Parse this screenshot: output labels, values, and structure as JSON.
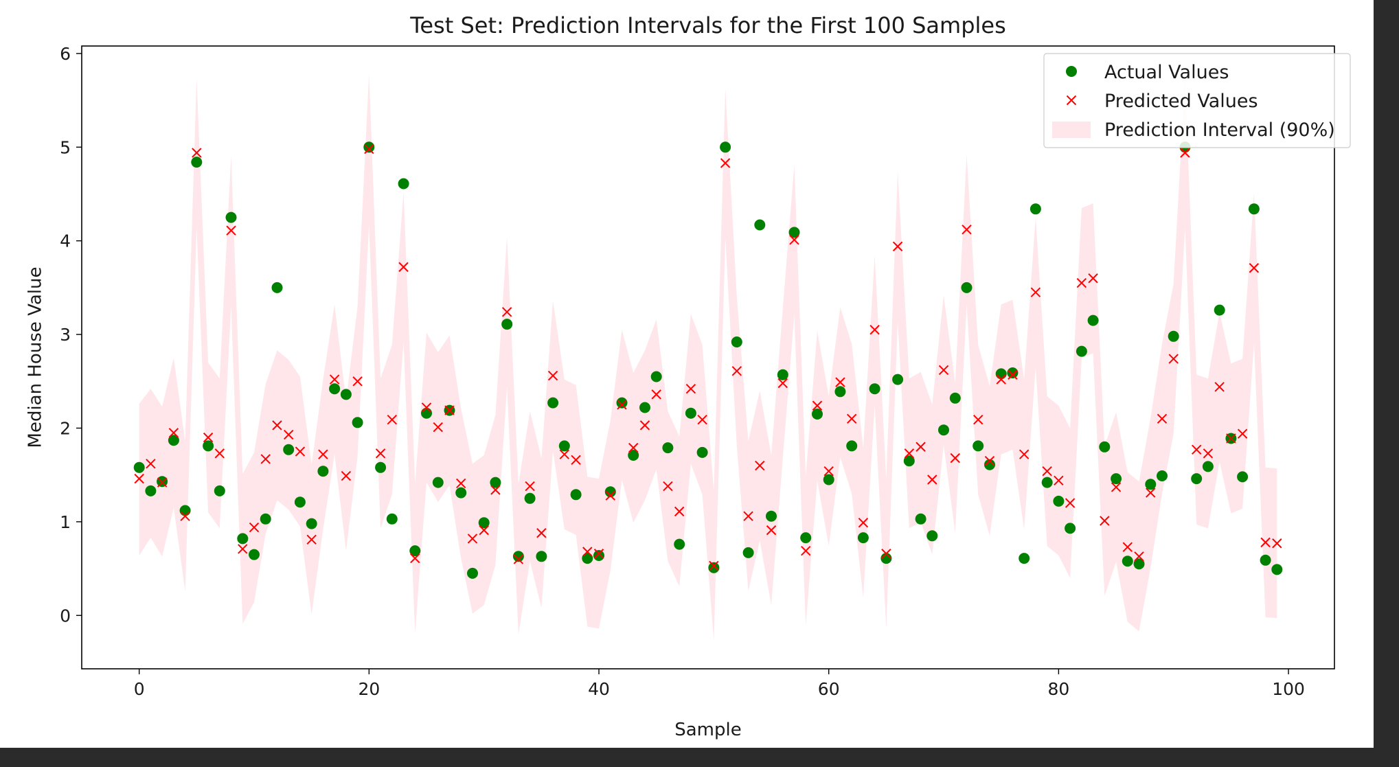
{
  "chart_data": {
    "type": "scatter",
    "title": "Test Set: Prediction Intervals for the First 100 Samples",
    "xlabel": "Sample",
    "ylabel": "Median House Value",
    "xlim": [
      -5,
      104
    ],
    "ylim": [
      -0.57,
      6.08
    ],
    "xticks": [
      0,
      20,
      40,
      60,
      80,
      100
    ],
    "yticks": [
      0,
      1,
      2,
      3,
      4,
      5,
      6
    ],
    "legend_position": "top-right",
    "grid": false,
    "colors": {
      "actual": "#008000",
      "predicted": "#ff0000",
      "interval": "#ffc0cb"
    },
    "series": [
      {
        "name": "Actual Values",
        "marker": "circle",
        "values": [
          1.58,
          1.33,
          1.43,
          1.87,
          1.12,
          4.84,
          1.81,
          1.33,
          4.25,
          0.82,
          0.65,
          1.03,
          3.5,
          1.77,
          1.21,
          0.98,
          1.54,
          2.42,
          2.36,
          2.06,
          5.0,
          1.58,
          1.03,
          4.61,
          0.69,
          2.16,
          1.42,
          2.19,
          1.31,
          0.45,
          0.99,
          1.42,
          3.11,
          0.63,
          1.25,
          0.63,
          2.27,
          1.81,
          1.29,
          0.61,
          0.64,
          1.32,
          2.27,
          1.71,
          2.22,
          2.55,
          1.79,
          0.76,
          2.16,
          1.74,
          0.51,
          5.0,
          2.92,
          0.67,
          4.17,
          1.06,
          2.57,
          4.09,
          0.83,
          2.15,
          1.45,
          2.39,
          1.81,
          0.83,
          2.42,
          0.61,
          2.52,
          1.65,
          1.03,
          0.85,
          1.98,
          2.32,
          3.5,
          1.81,
          1.61,
          2.58,
          2.59,
          0.61,
          4.34,
          1.42,
          1.22,
          0.93,
          2.82,
          3.15,
          1.8,
          1.46,
          0.58,
          0.55,
          1.4,
          1.49,
          2.98,
          5.0,
          1.46,
          1.59,
          3.26,
          1.89,
          1.48,
          4.34,
          0.59,
          0.49
        ]
      },
      {
        "name": "Predicted Values",
        "marker": "x",
        "values": [
          1.46,
          1.62,
          1.42,
          1.95,
          1.06,
          4.94,
          1.9,
          1.73,
          4.11,
          0.71,
          0.94,
          1.67,
          2.03,
          1.93,
          1.75,
          0.81,
          1.72,
          2.52,
          1.49,
          2.5,
          4.98,
          1.73,
          2.09,
          3.72,
          0.61,
          2.22,
          2.01,
          2.19,
          1.41,
          0.82,
          0.91,
          1.34,
          3.24,
          0.6,
          1.38,
          0.88,
          2.56,
          1.72,
          1.66,
          0.68,
          0.66,
          1.28,
          2.25,
          1.79,
          2.03,
          2.36,
          1.38,
          1.11,
          2.42,
          2.09,
          0.53,
          4.83,
          2.61,
          1.06,
          1.6,
          0.91,
          2.48,
          4.01,
          0.69,
          2.24,
          1.54,
          2.49,
          2.1,
          0.99,
          3.05,
          0.66,
          3.94,
          1.73,
          1.8,
          1.45,
          2.62,
          1.68,
          4.12,
          2.09,
          1.65,
          2.52,
          2.57,
          1.72,
          3.45,
          1.54,
          1.44,
          1.2,
          3.55,
          3.6,
          1.01,
          1.37,
          0.73,
          0.63,
          1.31,
          2.1,
          2.74,
          4.94,
          1.77,
          1.73,
          2.44,
          1.89,
          1.94,
          3.71,
          0.78,
          0.77
        ]
      },
      {
        "name": "Prediction Interval (90%)",
        "marker": "band",
        "lower": [
          0.64,
          0.83,
          0.63,
          1.15,
          0.26,
          4.14,
          1.1,
          0.93,
          3.31,
          -0.09,
          0.14,
          0.87,
          1.23,
          1.13,
          0.95,
          0.01,
          0.92,
          1.72,
          0.69,
          1.7,
          4.18,
          0.93,
          1.29,
          2.92,
          -0.19,
          1.42,
          1.21,
          1.39,
          0.61,
          0.02,
          0.11,
          0.54,
          2.44,
          -0.2,
          0.58,
          0.08,
          1.76,
          0.92,
          0.86,
          -0.12,
          -0.14,
          0.48,
          1.45,
          0.99,
          1.23,
          1.56,
          0.58,
          0.31,
          1.62,
          1.29,
          -0.27,
          4.03,
          1.81,
          0.26,
          0.8,
          0.11,
          1.68,
          3.21,
          -0.11,
          1.44,
          0.74,
          1.69,
          1.3,
          0.19,
          2.25,
          -0.14,
          3.14,
          0.93,
          1.0,
          0.65,
          1.82,
          0.88,
          3.32,
          1.29,
          0.85,
          1.72,
          1.77,
          0.92,
          2.65,
          0.74,
          0.64,
          0.4,
          2.75,
          2.8,
          0.21,
          0.57,
          -0.07,
          -0.17,
          0.51,
          1.3,
          1.94,
          4.14,
          0.97,
          0.93,
          1.64,
          1.09,
          1.14,
          2.91,
          -0.02,
          -0.03
        ],
        "upper": [
          2.26,
          2.42,
          2.23,
          2.75,
          1.86,
          5.74,
          2.7,
          2.53,
          4.91,
          1.51,
          1.74,
          2.47,
          2.83,
          2.73,
          2.55,
          1.61,
          2.52,
          3.32,
          2.29,
          3.3,
          5.78,
          2.53,
          2.89,
          4.52,
          1.41,
          3.02,
          2.81,
          2.99,
          2.21,
          1.62,
          1.71,
          2.14,
          4.04,
          1.4,
          2.18,
          1.68,
          3.36,
          2.52,
          2.46,
          1.48,
          1.46,
          2.08,
          3.05,
          2.59,
          2.83,
          3.16,
          2.18,
          1.91,
          3.22,
          2.89,
          1.33,
          5.63,
          3.41,
          1.86,
          2.4,
          1.71,
          3.28,
          4.81,
          1.49,
          3.04,
          2.34,
          3.29,
          2.9,
          1.79,
          3.85,
          1.46,
          4.74,
          2.53,
          2.6,
          2.25,
          3.42,
          2.48,
          4.92,
          2.89,
          2.45,
          3.32,
          3.37,
          2.52,
          4.25,
          2.34,
          2.24,
          2.0,
          4.35,
          4.4,
          1.81,
          2.17,
          1.53,
          1.43,
          2.11,
          2.9,
          3.54,
          5.74,
          2.57,
          2.53,
          3.24,
          2.69,
          2.74,
          4.51,
          1.58,
          1.57
        ]
      }
    ]
  }
}
